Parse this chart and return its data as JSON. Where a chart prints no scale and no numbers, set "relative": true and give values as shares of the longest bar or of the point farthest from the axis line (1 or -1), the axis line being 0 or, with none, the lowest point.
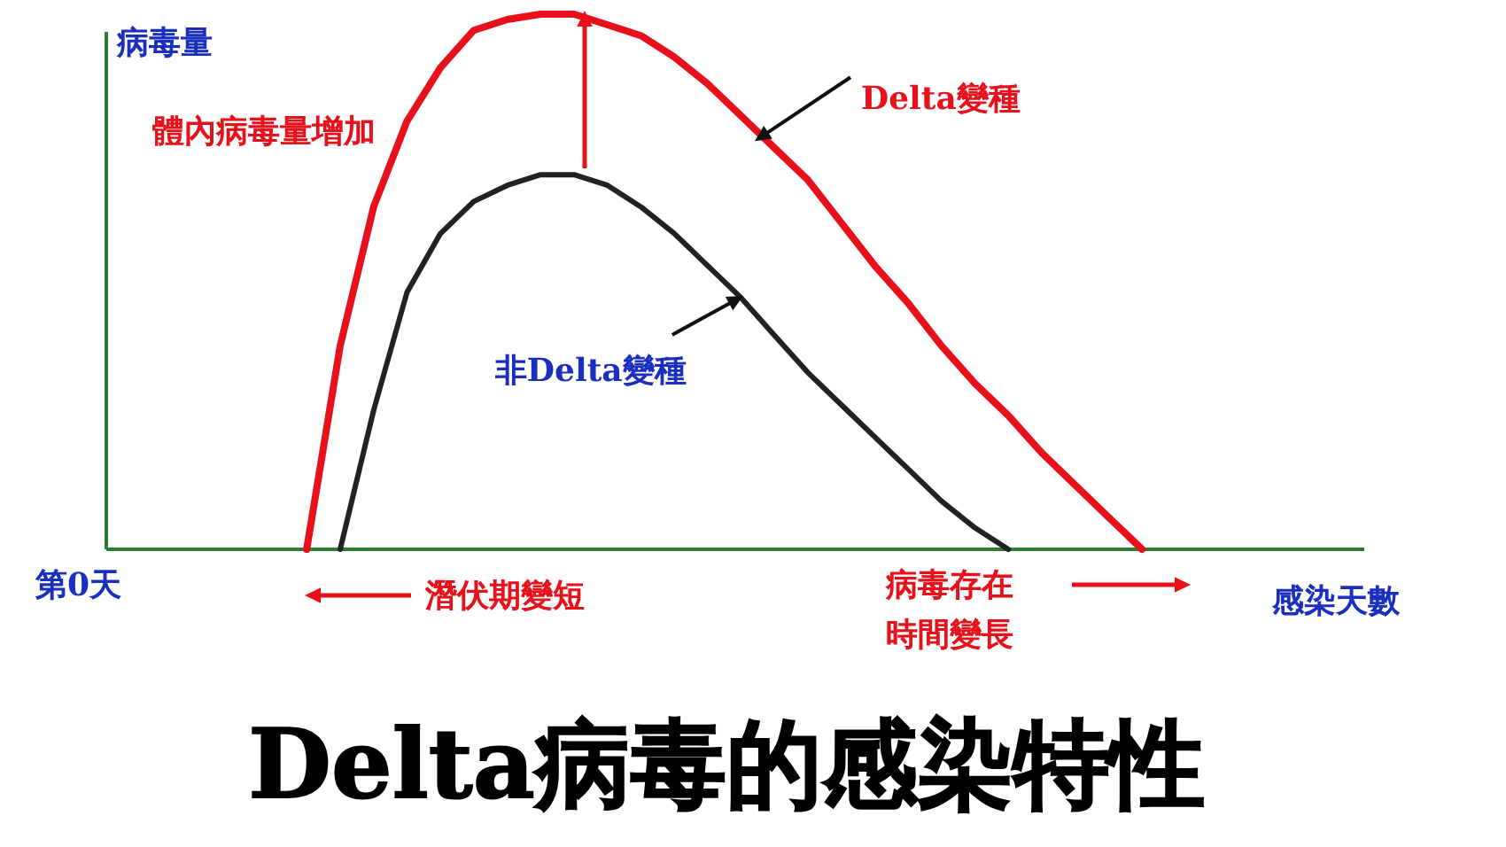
{
  "chart_data": {
    "type": "line",
    "relative": true,
    "title": "Delta病毒的感染特性",
    "ylabel": "病毒量",
    "xlabel": "感染天數",
    "categories": [
      null,
      null,
      null,
      null,
      null,
      null,
      null,
      null,
      null,
      null,
      null,
      null,
      null,
      null,
      null,
      null,
      null,
      null,
      null,
      null,
      null,
      null,
      null,
      null,
      null,
      null,
      null,
      null,
      null,
      null,
      null,
      null,
      null,
      null,
      null,
      null
    ],
    "series": [
      {
        "name": "Delta變種",
        "color": "#e8101a",
        "values": [
          null,
          null,
          null,
          null,
          null,
          null,
          0,
          0.38,
          0.64,
          0.8,
          0.9,
          0.97,
          0.99,
          1,
          1,
          0.98,
          0.96,
          0.92,
          0.87,
          0.81,
          0.75,
          0.69,
          0.61,
          0.53,
          0.46,
          0.38,
          0.31,
          0.25,
          0.18,
          0.12,
          0.06,
          0,
          null,
          null,
          null,
          null
        ]
      },
      {
        "name": "非Delta變種",
        "color": "#222222",
        "values": [
          null,
          null,
          null,
          null,
          null,
          null,
          null,
          0,
          0.26,
          0.48,
          0.59,
          0.65,
          0.68,
          0.7,
          0.7,
          0.68,
          0.64,
          0.59,
          0.53,
          0.47,
          0.4,
          0.33,
          0.27,
          0.21,
          0.15,
          0.09,
          0.04,
          0,
          null,
          null,
          null,
          null,
          null,
          null,
          null,
          null
        ]
      }
    ],
    "annotations": [
      "第0天",
      "體內病毒量增加",
      "潛伏期變短",
      "病毒存在",
      "時間變長"
    ]
  }
}
